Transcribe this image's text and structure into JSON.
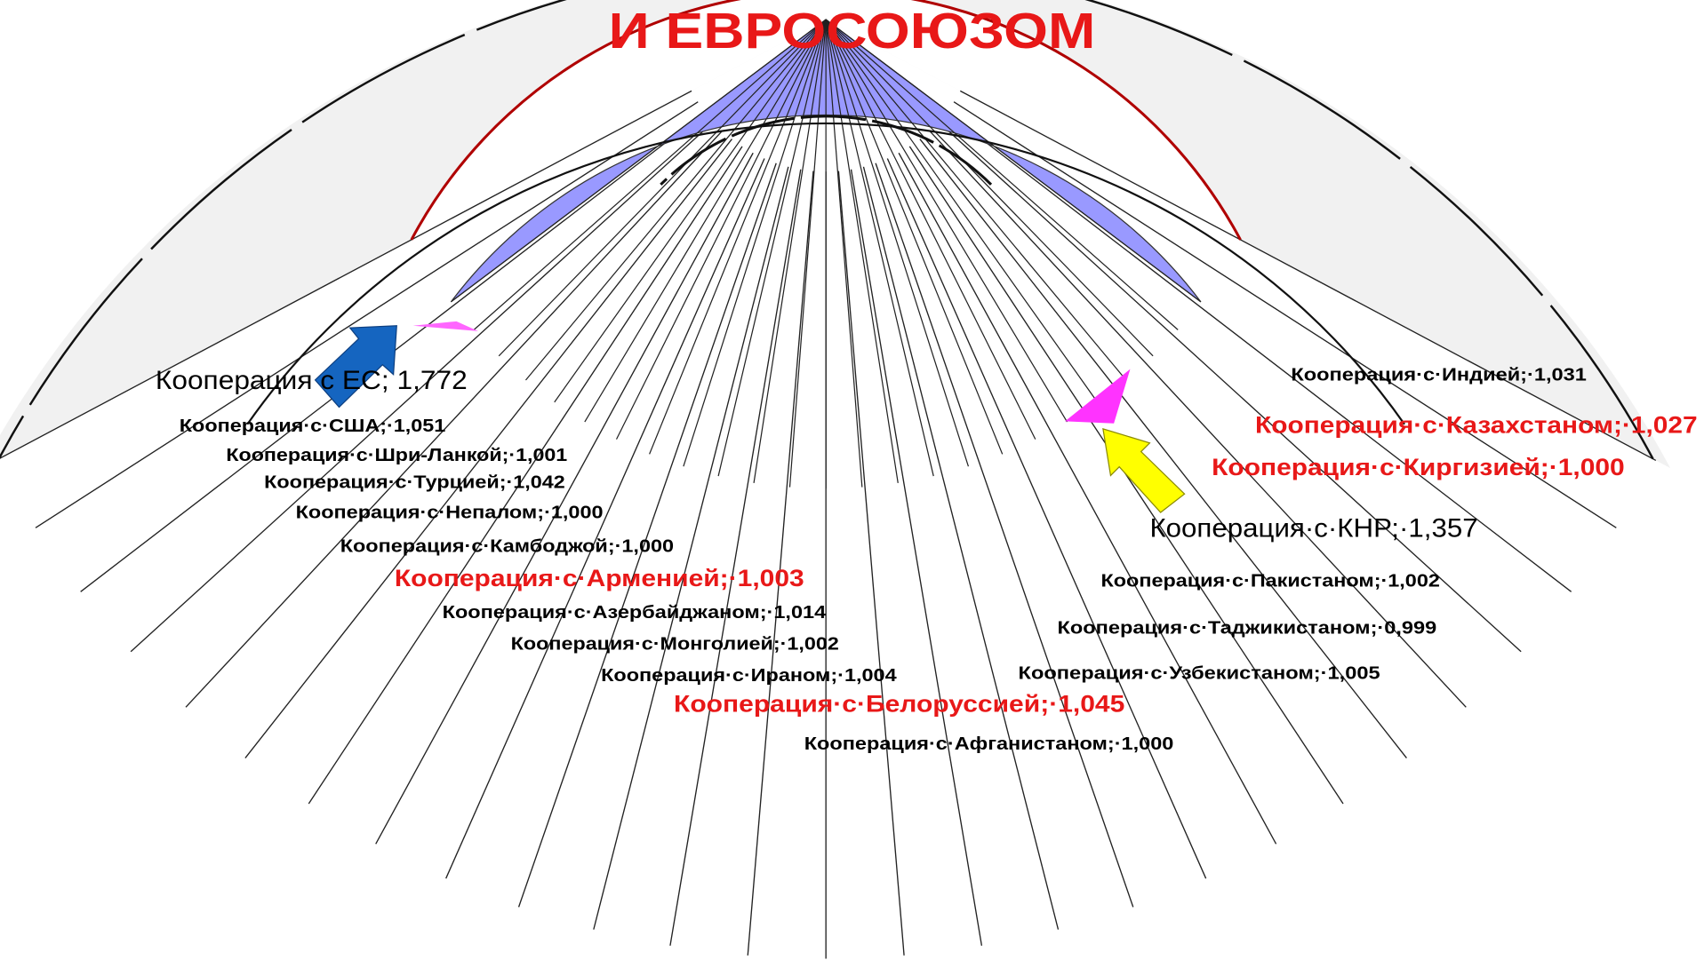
{
  "title": "И ЕВРОСОЮЗОМ",
  "labels": [
    {
      "text": "Кооперация с ЕС; 1,772"
    },
    {
      "text": "Кооперация·с·США;·1,051"
    },
    {
      "text": "Кооперация·с·Шри-Ланкой;·1,001"
    },
    {
      "text": "Кооперация·с·Турцией;·1,042"
    },
    {
      "text": "Кооперация·с·Непалом;·1,000"
    },
    {
      "text": "Кооперация·с·Камбоджой;·1,000"
    },
    {
      "text": "Кооперация·с·Арменией;·1,003"
    },
    {
      "text": "Кооперация·с·Азербайджаном;·1,014"
    },
    {
      "text": "Кооперация·с·Монголией;·1,002"
    },
    {
      "text": "Кооперация·с·Ираном;·1,004"
    },
    {
      "text": "Кооперация·с·Белоруссией;·1,045"
    },
    {
      "text": "Кооперация·с·Афганистаном;·1,000"
    },
    {
      "text": "Кооперация·с·Индией;·1,031"
    },
    {
      "text": "Кооперация·с·Казахстаном;·1,027"
    },
    {
      "text": "Кооперация·с·Киргизией;·1,000"
    },
    {
      "text": "Кооперация·с·КНР;·1,357"
    },
    {
      "text": "Кооперация·с·Пакистаном;·1,002"
    },
    {
      "text": "Кооперация·с·Таджикистаном;·0,999"
    },
    {
      "text": "Кооперация·с·Узбекистаном;·1,005"
    }
  ]
}
